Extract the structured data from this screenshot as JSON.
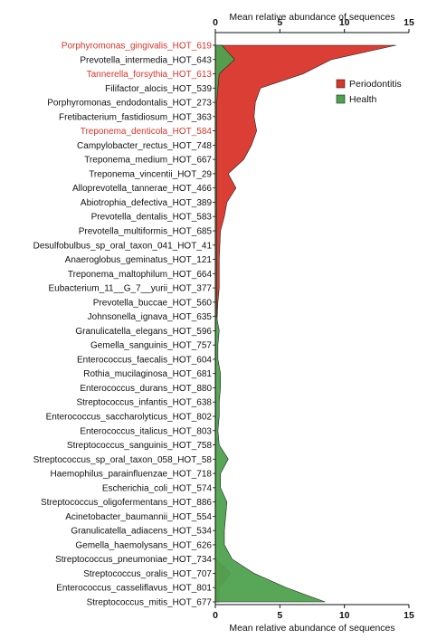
{
  "chart_data": {
    "type": "area",
    "orientation": "horizontal",
    "xlabel_top": "Mean relative abundance of sequences",
    "xlabel_bottom": "Mean relative abundance of sequences",
    "xlim": [
      0,
      15
    ],
    "xticks": [
      "0",
      "5",
      "10",
      "15"
    ],
    "legend_position": "top-right",
    "categories": [
      "Porphyromonas_gingivalis_HOT_619",
      "Prevotella_intermedia_HOT_643",
      "Tannerella_forsythia_HOT_613",
      "Filifactor_alocis_HOT_539",
      "Porphyromonas_endodontalis_HOT_273",
      "Fretibacterium_fastidiosum_HOT_363",
      "Treponema_denticola_HOT_584",
      "Campylobacter_rectus_HOT_748",
      "Treponema_medium_HOT_667",
      "Treponema_vincentii_HOT_29",
      "Alloprevotella_tannerae_HOT_466",
      "Abiotrophia_defectiva_HOT_389",
      "Prevotella_dentalis_HOT_583",
      "Prevotella_multiformis_HOT_685",
      "Desulfobulbus_sp_oral_taxon_041_HOT_41",
      "Anaeroglobus_geminatus_HOT_121",
      "Treponema_maltophilum_HOT_664",
      "Eubacterium_11__G_7__yurii_HOT_377",
      "Prevotella_buccae_HOT_560",
      "Johnsonella_ignava_HOT_635",
      "Granulicatella_elegans_HOT_596",
      "Gemella_sanguinis_HOT_757",
      "Enterococcus_faecalis_HOT_604",
      "Rothia_mucilaginosa_HOT_681",
      "Enterococcus_durans_HOT_880",
      "Streptococcus_infantis_HOT_638",
      "Enterococcus_saccharolyticus_HOT_802",
      "Enterococcus_italicus_HOT_803",
      "Streptococcus_sanguinis_HOT_758",
      "Streptococcus_sp_oral_taxon_058_HOT_58",
      "Haemophilus_parainfluenzae_HOT_718",
      "Escherichia_coli_HOT_574",
      "Streptococcus_oligofermentans_HOT_886",
      "Acinetobacter_baumannii_HOT_554",
      "Granulicatella_adiacens_HOT_534",
      "Gemella_haemolysans_HOT_626",
      "Streptococcus_pneumoniae_HOT_734",
      "Streptococcus_oralis_HOT_707",
      "Enterococcus_casseliflavus_HOT_801",
      "Streptococcus_mitis_HOT_677"
    ],
    "highlighted_categories": [
      "Porphyromonas_gingivalis_HOT_619",
      "Tannerella_forsythia_HOT_613",
      "Treponema_denticola_HOT_584"
    ],
    "highlight_color": "#d9342a",
    "label_color": "#111111",
    "series": [
      {
        "name": "Periodontitis",
        "color": "#d9342a",
        "values": [
          14.0,
          9.0,
          6.8,
          3.5,
          3.1,
          3.0,
          3.2,
          2.8,
          2.2,
          1.0,
          1.6,
          0.9,
          0.7,
          0.4,
          0.35,
          0.3,
          0.3,
          0.3,
          0.2,
          0.15,
          0.05,
          0.05,
          0.05,
          0.05,
          0.05,
          0.05,
          0.05,
          0.05,
          0.1,
          0.1,
          0.1,
          0.05,
          0.05,
          0.05,
          0.05,
          0.05,
          0.05,
          1.2,
          0.3,
          0.3
        ]
      },
      {
        "name": "Health",
        "color": "#4fa24f",
        "values": [
          0.5,
          1.5,
          0.3,
          0.2,
          0.1,
          0.1,
          0.1,
          0.1,
          0.1,
          0.1,
          0.1,
          0.1,
          0.1,
          0.1,
          0.1,
          0.1,
          0.1,
          0.1,
          0.1,
          0.1,
          0.3,
          0.2,
          0.2,
          0.4,
          0.4,
          0.3,
          0.3,
          0.2,
          0.3,
          1.0,
          0.4,
          0.4,
          0.9,
          0.8,
          0.7,
          0.7,
          1.3,
          3.0,
          5.5,
          8.5
        ]
      }
    ]
  }
}
